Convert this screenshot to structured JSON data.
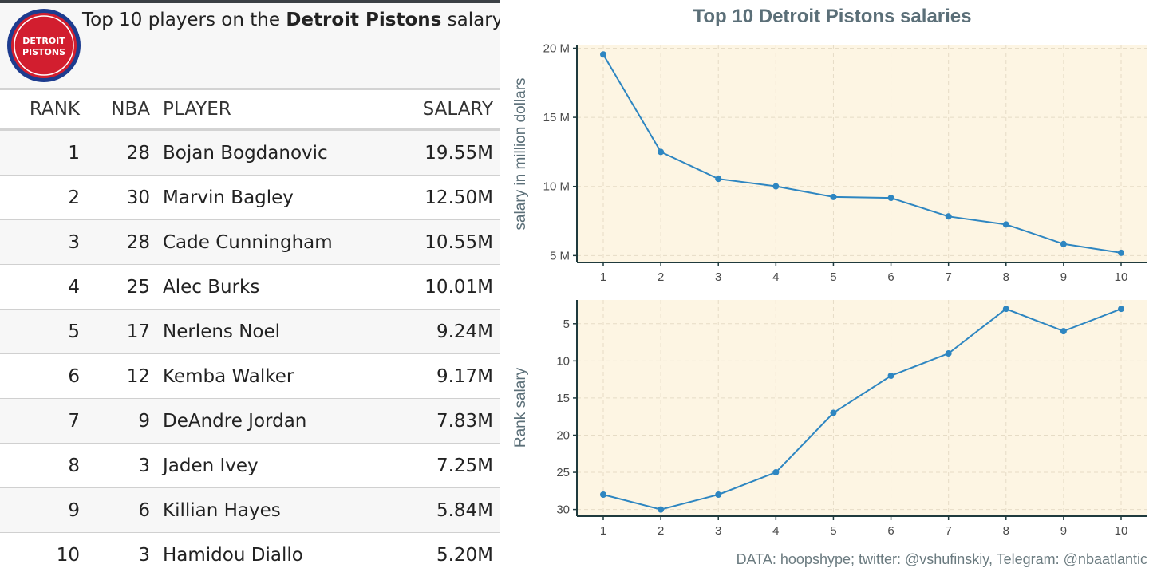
{
  "table": {
    "heading_pre": "Top 10 players on the ",
    "heading_team": "Detroit Pistons",
    "heading_post": " salary cap",
    "logo_text_1": "DETROIT",
    "logo_text_2": "PISTONS",
    "columns": [
      "RANK",
      "NBA",
      "PLAYER",
      "SALARY"
    ],
    "rows": [
      {
        "rank": "1",
        "nba": "28",
        "player": "Bojan Bogdanovic",
        "salary": "19.55M"
      },
      {
        "rank": "2",
        "nba": "30",
        "player": "Marvin Bagley",
        "salary": "12.50M"
      },
      {
        "rank": "3",
        "nba": "28",
        "player": "Cade Cunningham",
        "salary": "10.55M"
      },
      {
        "rank": "4",
        "nba": "25",
        "player": "Alec Burks",
        "salary": "10.01M"
      },
      {
        "rank": "5",
        "nba": "17",
        "player": "Nerlens Noel",
        "salary": "9.24M"
      },
      {
        "rank": "6",
        "nba": "12",
        "player": "Kemba Walker",
        "salary": "9.17M"
      },
      {
        "rank": "7",
        "nba": "9",
        "player": "DeAndre Jordan",
        "salary": "7.83M"
      },
      {
        "rank": "8",
        "nba": "3",
        "player": "Jaden Ivey",
        "salary": "7.25M"
      },
      {
        "rank": "9",
        "nba": "6",
        "player": "Killian Hayes",
        "salary": "5.84M"
      },
      {
        "rank": "10",
        "nba": "3",
        "player": "Hamidou Diallo",
        "salary": "5.20M"
      }
    ]
  },
  "chart_data": [
    {
      "type": "line",
      "title": "Top 10 Detroit Pistons salaries",
      "xlabel": "",
      "ylabel": "salary in million dollars",
      "x": [
        1,
        2,
        3,
        4,
        5,
        6,
        7,
        8,
        9,
        10
      ],
      "values": [
        19.55,
        12.5,
        10.55,
        10.01,
        9.24,
        9.17,
        7.83,
        7.25,
        5.84,
        5.2
      ],
      "ylim": [
        4.5,
        20.2
      ],
      "yticks": [
        5,
        10,
        15,
        20
      ],
      "ytick_labels": [
        "5 M",
        "10 M",
        "15 M",
        "20 M"
      ],
      "xticks": [
        "1",
        "2",
        "3",
        "4",
        "5",
        "6",
        "7",
        "8",
        "9",
        "10"
      ],
      "grid": true
    },
    {
      "type": "line",
      "xlabel": "",
      "ylabel": "Rank salary",
      "x": [
        1,
        2,
        3,
        4,
        5,
        6,
        7,
        8,
        9,
        10
      ],
      "values": [
        28,
        30,
        28,
        25,
        17,
        12,
        9,
        3,
        6,
        3
      ],
      "ylim": [
        30.9,
        1.8
      ],
      "y_reversed": true,
      "yticks": [
        5,
        10,
        15,
        20,
        25,
        30
      ],
      "ytick_labels": [
        "5",
        "10",
        "15",
        "20",
        "25",
        "30"
      ],
      "xticks": [
        "1",
        "2",
        "3",
        "4",
        "5",
        "6",
        "7",
        "8",
        "9",
        "10"
      ],
      "grid": true
    }
  ],
  "caption": "DATA: hoopshype; twitter: @vshufinskiy, Telegram: @nbaatlantic",
  "colors": {
    "line": "#2e86c1",
    "panel_bg": "#fdf5e3",
    "axis": "#1f3a3d",
    "title": "#5b6f78"
  }
}
